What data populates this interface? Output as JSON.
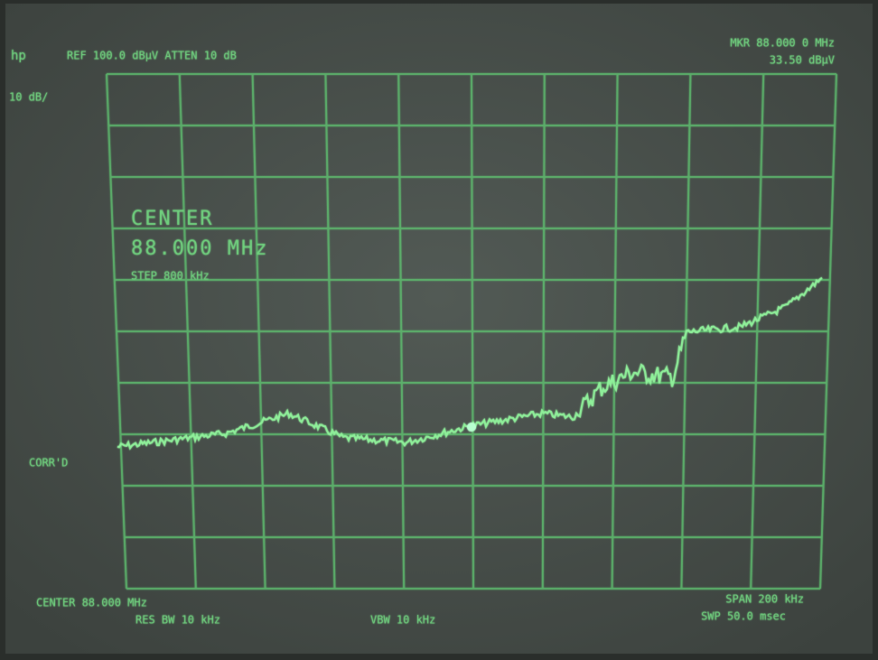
{
  "screen": {
    "brand": "hp",
    "top_left": "REF 100.0 dBµV ATTEN 10 dB",
    "marker_freq": "MKR 88.000 0 MHz",
    "marker_level": "33.50 dBµV",
    "scale": "10 dB/",
    "center_label": "CENTER",
    "center_value": "88.000 MHz",
    "step": "STEP 800 kHz",
    "corrected": "CORR'D",
    "bottom_center": "CENTER 88.000 MHz",
    "res_bw": "RES BW 10 kHz",
    "vbw": "VBW 10 kHz",
    "span": "SPAN 200 kHz",
    "sweep": "SWP 50.0 msec"
  }
}
